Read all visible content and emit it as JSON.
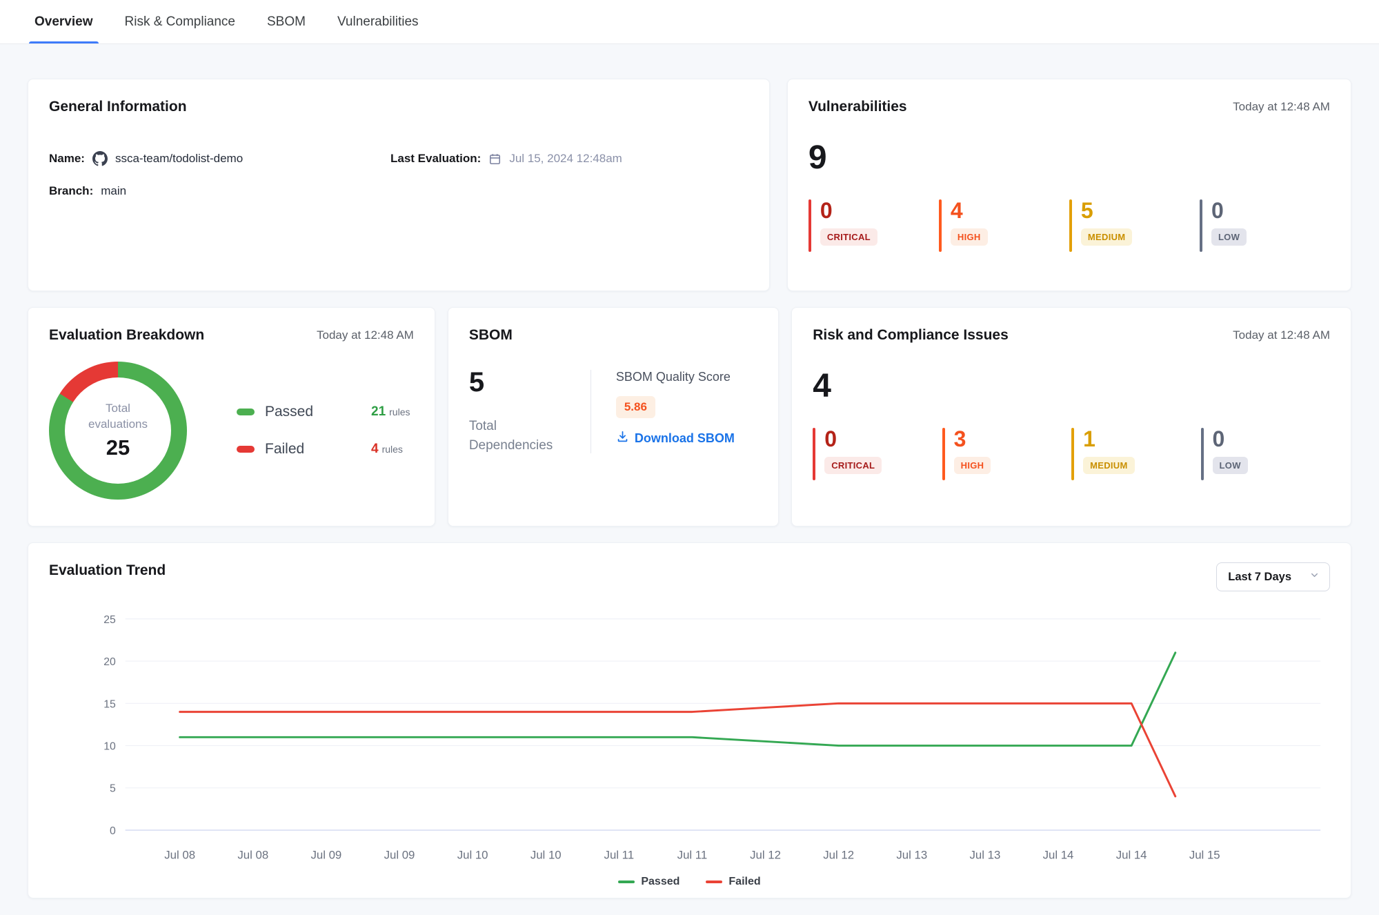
{
  "tabs": [
    "Overview",
    "Risk & Compliance",
    "SBOM",
    "Vulnerabilities"
  ],
  "general_info": {
    "title": "General Information",
    "name_label": "Name:",
    "name_value": "ssca-team/todolist-demo",
    "branch_label": "Branch:",
    "branch_value": "main",
    "last_eval_label": "Last Evaluation:",
    "last_eval_value": "Jul 15, 2024 12:48am"
  },
  "vulnerabilities": {
    "title": "Vulnerabilities",
    "timestamp": "Today at 12:48 AM",
    "total": "9",
    "severities": [
      {
        "count": "0",
        "label": "CRITICAL"
      },
      {
        "count": "4",
        "label": "HIGH"
      },
      {
        "count": "5",
        "label": "MEDIUM"
      },
      {
        "count": "0",
        "label": "LOW"
      }
    ]
  },
  "evaluation_breakdown": {
    "title": "Evaluation Breakdown",
    "timestamp": "Today at 12:48 AM",
    "center_label": "Total evaluations",
    "center_value": "25",
    "legend": [
      {
        "label": "Passed",
        "value": "21",
        "unit": "rules"
      },
      {
        "label": "Failed",
        "value": "4",
        "unit": "rules"
      }
    ]
  },
  "sbom": {
    "title": "SBOM",
    "total": "5",
    "total_label": "Total Dependencies",
    "score_label": "SBOM Quality Score",
    "score": "5.86",
    "download_label": "Download SBOM"
  },
  "risk_compliance": {
    "title": "Risk and Compliance Issues",
    "timestamp": "Today at 12:48 AM",
    "total": "4",
    "severities": [
      {
        "count": "0",
        "label": "CRITICAL"
      },
      {
        "count": "3",
        "label": "HIGH"
      },
      {
        "count": "1",
        "label": "MEDIUM"
      },
      {
        "count": "0",
        "label": "LOW"
      }
    ]
  },
  "trend": {
    "title": "Evaluation Trend",
    "range": "Last 7 Days",
    "legend": [
      "Passed",
      "Failed"
    ]
  },
  "colors": {
    "accent_blue": "#3E7BFA",
    "link_blue": "#1A73E8",
    "passed_green": "#34A853",
    "failed_red": "#EA4335",
    "donut_green": "#4CAF50",
    "donut_red": "#E53935",
    "critical_red": "#B42318",
    "high_orange": "#F4511E",
    "medium_amber": "#D99E02",
    "low_slate": "#5D6576",
    "score_orange": "#F4511E"
  },
  "chart_data": [
    {
      "id": "evaluation-breakdown",
      "type": "pie",
      "title": "Evaluation Breakdown",
      "center_label": "Total evaluations",
      "center_value": 25,
      "slices": [
        {
          "label": "Passed",
          "value": 21,
          "color": "#4CAF50"
        },
        {
          "label": "Failed",
          "value": 4,
          "color": "#E53935"
        }
      ]
    },
    {
      "id": "evaluation-trend",
      "type": "line",
      "title": "Evaluation Trend",
      "x_tick_labels": [
        "Jul 08",
        "Jul 08",
        "Jul 09",
        "Jul 09",
        "Jul 10",
        "Jul 10",
        "Jul 11",
        "Jul 11",
        "Jul 12",
        "Jul 12",
        "Jul 13",
        "Jul 13",
        "Jul 14",
        "Jul 14",
        "Jul 15"
      ],
      "ylim": [
        0,
        25
      ],
      "yticks": [
        0,
        5,
        10,
        15,
        20,
        25
      ],
      "grid": true,
      "legend_position": "bottom",
      "series": [
        {
          "name": "Passed",
          "color": "#34A853",
          "x": [
            0,
            1,
            2,
            3,
            4,
            5,
            6,
            7,
            8,
            9,
            10,
            11,
            12,
            13,
            13.6
          ],
          "values": [
            11,
            11,
            11,
            11,
            11,
            11,
            11,
            11,
            10.5,
            10,
            10,
            10,
            10,
            10,
            21
          ]
        },
        {
          "name": "Failed",
          "color": "#EA4335",
          "x": [
            0,
            1,
            2,
            3,
            4,
            5,
            6,
            7,
            8,
            9,
            10,
            11,
            12,
            13,
            13.6
          ],
          "values": [
            14,
            14,
            14,
            14,
            14,
            14,
            14,
            14,
            14.5,
            15,
            15,
            15,
            15,
            15,
            4
          ]
        }
      ]
    }
  ]
}
